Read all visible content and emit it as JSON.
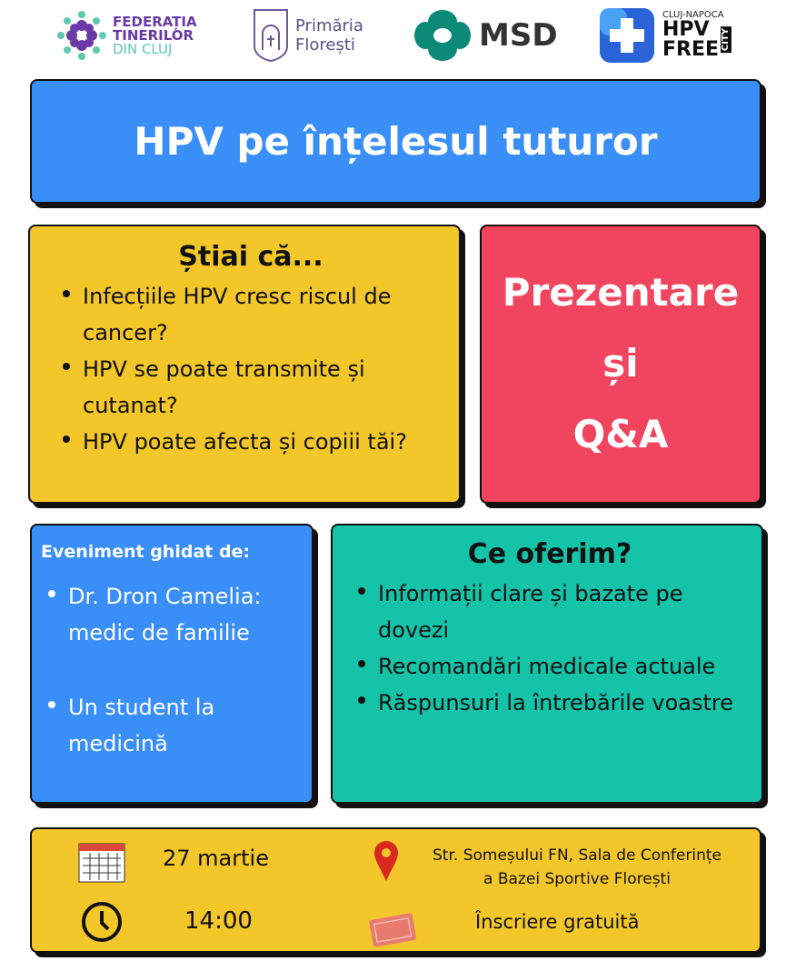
{
  "logos": {
    "ftc": {
      "line1": "FEDERAȚIA",
      "line2": "TINERILOR",
      "line3": "DIN CLUJ"
    },
    "primaria": {
      "line1": "Primăria",
      "line2": "Florești"
    },
    "msd": {
      "text": "MSD"
    },
    "hpvfree": {
      "top": "CLUJ-NAPOCA",
      "line1": "HPV",
      "line2": "FREE",
      "side": "CITY"
    }
  },
  "title": "HPV pe înțelesul tuturor",
  "facts": {
    "heading": "Știai că...",
    "items": [
      "Infecțiile HPV cresc riscul de cancer?",
      "HPV se poate transmite și cutanat?",
      "HPV poate afecta și copiii tăi?"
    ]
  },
  "presentation": {
    "line1": "Prezentare",
    "line2": "și",
    "line3": "Q&A"
  },
  "guides": {
    "heading": "Eveniment ghidat de:",
    "items": [
      "Dr. Dron Camelia: medic de familie",
      "Un student la medicină"
    ]
  },
  "offer": {
    "heading": "Ce oferim?",
    "items": [
      "Informații clare și bazate pe dovezi",
      "Recomandări medicale actuale",
      "Răspunsuri la întrebările voastre"
    ]
  },
  "details": {
    "date": "27 martie",
    "time": "14:00",
    "location_line1": "Str. Someșului FN, Sala de Conferințe",
    "location_line2": "a Bazei Sportive Florești",
    "registration": "Înscriere gratuită"
  },
  "colors": {
    "blue": "#3a8ef7",
    "yellow": "#f3c62a",
    "pink": "#f1455f",
    "teal": "#14c3a8",
    "purple": "#6a3aa6"
  }
}
